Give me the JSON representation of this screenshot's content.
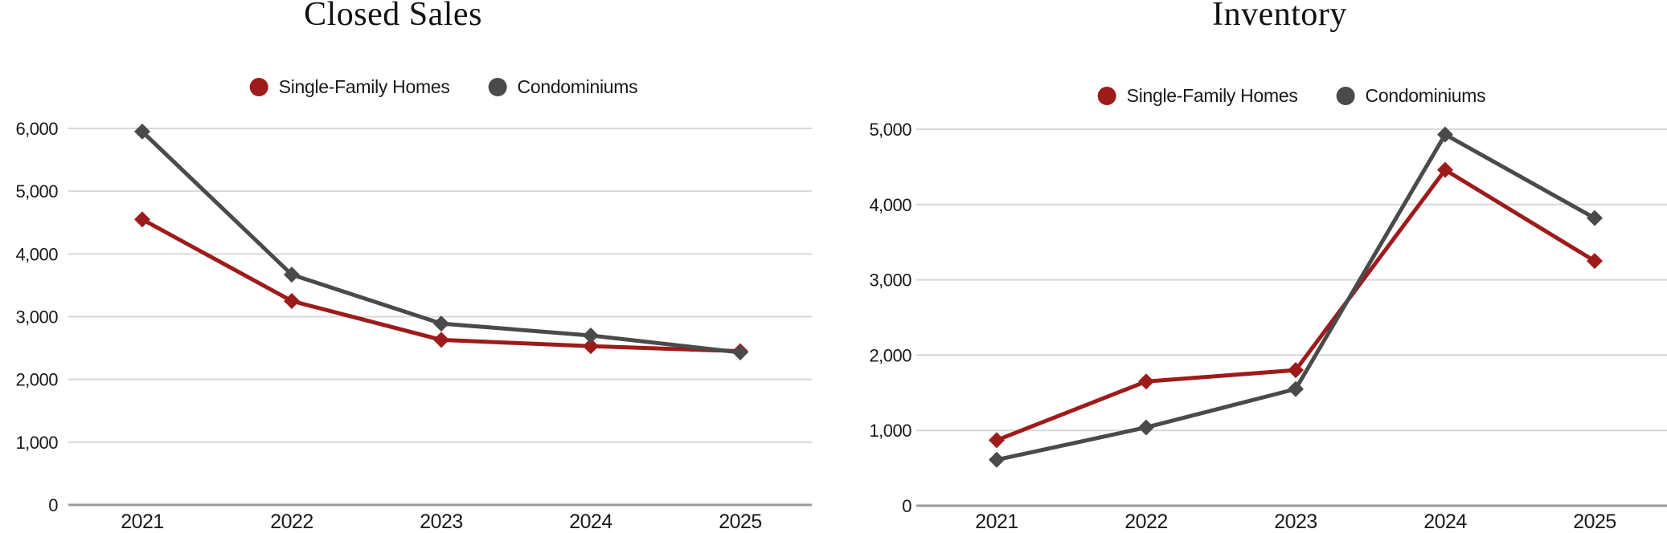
{
  "chart_data": [
    {
      "type": "line",
      "title": "Closed Sales",
      "categories": [
        "2021",
        "2022",
        "2023",
        "2024",
        "2025"
      ],
      "series": [
        {
          "name": "Single-Family Homes",
          "color": "#9E1B1B",
          "values": [
            4550,
            3250,
            2630,
            2530,
            2450
          ]
        },
        {
          "name": "Condominiums",
          "color": "#4A4A4A",
          "values": [
            5950,
            3670,
            2890,
            2700,
            2430
          ]
        }
      ],
      "xlabel": "",
      "ylabel": "",
      "ylim": [
        0,
        6000
      ],
      "ytick_step": 1000,
      "ytick_labels": [
        "0",
        "1,000",
        "2,000",
        "3,000",
        "4,000",
        "5,000",
        "6,000"
      ],
      "grid": "horizontal",
      "legend_position": "top",
      "marker": "diamond"
    },
    {
      "type": "line",
      "title": "Inventory",
      "categories": [
        "2021",
        "2022",
        "2023",
        "2024",
        "2025"
      ],
      "series": [
        {
          "name": "Single-Family Homes",
          "color": "#9E1B1B",
          "values": [
            870,
            1650,
            1800,
            4460,
            3250
          ]
        },
        {
          "name": "Condominiums",
          "color": "#4A4A4A",
          "values": [
            610,
            1040,
            1550,
            4930,
            3820
          ]
        }
      ],
      "xlabel": "",
      "ylabel": "",
      "ylim": [
        0,
        5000
      ],
      "ytick_step": 1000,
      "ytick_labels": [
        "0",
        "1,000",
        "2,000",
        "3,000",
        "4,000",
        "5,000"
      ],
      "grid": "horizontal",
      "legend_position": "top",
      "marker": "diamond"
    }
  ],
  "colors": {
    "gridline": "#D8D8D8",
    "zero_axis": "#9B9B9B",
    "text": "#1a1a1a"
  }
}
